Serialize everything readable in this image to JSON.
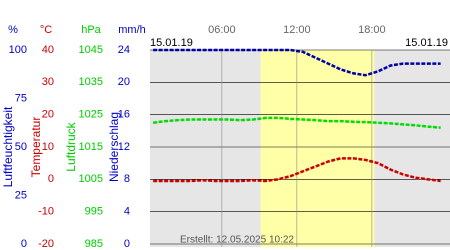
{
  "chart_data": {
    "type": "line",
    "date_left": "15.01.19",
    "date_right": "15.01.19",
    "footer": "Erstellt: 12.05.2025 10:22",
    "xlim": [
      0.25,
      24.25
    ],
    "xticks": [
      {
        "value": 6,
        "label": "06:00"
      },
      {
        "value": 12,
        "label": "12:00"
      },
      {
        "value": 18,
        "label": "18:00"
      }
    ],
    "highlight": [
      9.1,
      18.2
    ],
    "axes": [
      {
        "unit": "%",
        "title": "Luftfeuchtigkeit",
        "color": "#0000cc",
        "ylim": [
          0,
          100
        ],
        "yticks": [
          100,
          75,
          50,
          25,
          0
        ]
      },
      {
        "unit": "°C",
        "title": "Temperatur",
        "color": "#cc0000",
        "ylim": [
          -20,
          40
        ],
        "yticks": [
          40,
          30,
          20,
          10,
          0,
          -10,
          -20
        ]
      },
      {
        "unit": "hPa",
        "title": "Luftdruck",
        "color": "#00cc00",
        "ylim": [
          985,
          1045
        ],
        "yticks": [
          1045,
          1035,
          1025,
          1015,
          1005,
          995,
          985
        ]
      },
      {
        "unit": "mm/h",
        "title": "Niederschlag",
        "color": "#0000cc",
        "ylim": [
          0,
          24
        ],
        "yticks": [
          24,
          20,
          16,
          12,
          8,
          4,
          0
        ]
      }
    ],
    "x": [
      0.5,
      1.5,
      2.5,
      3.5,
      4.5,
      5.5,
      6.5,
      7.5,
      8.5,
      9.5,
      10.5,
      11.5,
      12.5,
      13.5,
      14.5,
      15.5,
      16.5,
      17.5,
      18.5,
      19.5,
      20.5,
      21.5,
      22.5,
      23.5
    ],
    "series": [
      {
        "axis": 0,
        "color": "#0000aa",
        "values": [
          100,
          100,
          100,
          100,
          100,
          100,
          100,
          100,
          100,
          100,
          100,
          100,
          99,
          96,
          93,
          90,
          88,
          87,
          89,
          92,
          93,
          93,
          93,
          93
        ]
      },
      {
        "axis": 1,
        "color": "#cc0000",
        "values": [
          -0.5,
          -0.5,
          -0.5,
          -0.5,
          -0.3,
          -0.5,
          -0.5,
          -0.5,
          -0.3,
          -0.5,
          0,
          1,
          2.5,
          4,
          5.5,
          6.5,
          6.5,
          6,
          5,
          3,
          1.5,
          0.5,
          0,
          -0.5
        ]
      },
      {
        "axis": 2,
        "color": "#00dd00",
        "values": [
          1022.5,
          1023,
          1023.3,
          1023.5,
          1023.5,
          1023.5,
          1023.5,
          1023.3,
          1023.5,
          1024,
          1024,
          1023.7,
          1023.5,
          1023.3,
          1023,
          1023,
          1022.8,
          1022.7,
          1022.5,
          1022.3,
          1022,
          1021.7,
          1021.3,
          1021
        ]
      }
    ]
  }
}
